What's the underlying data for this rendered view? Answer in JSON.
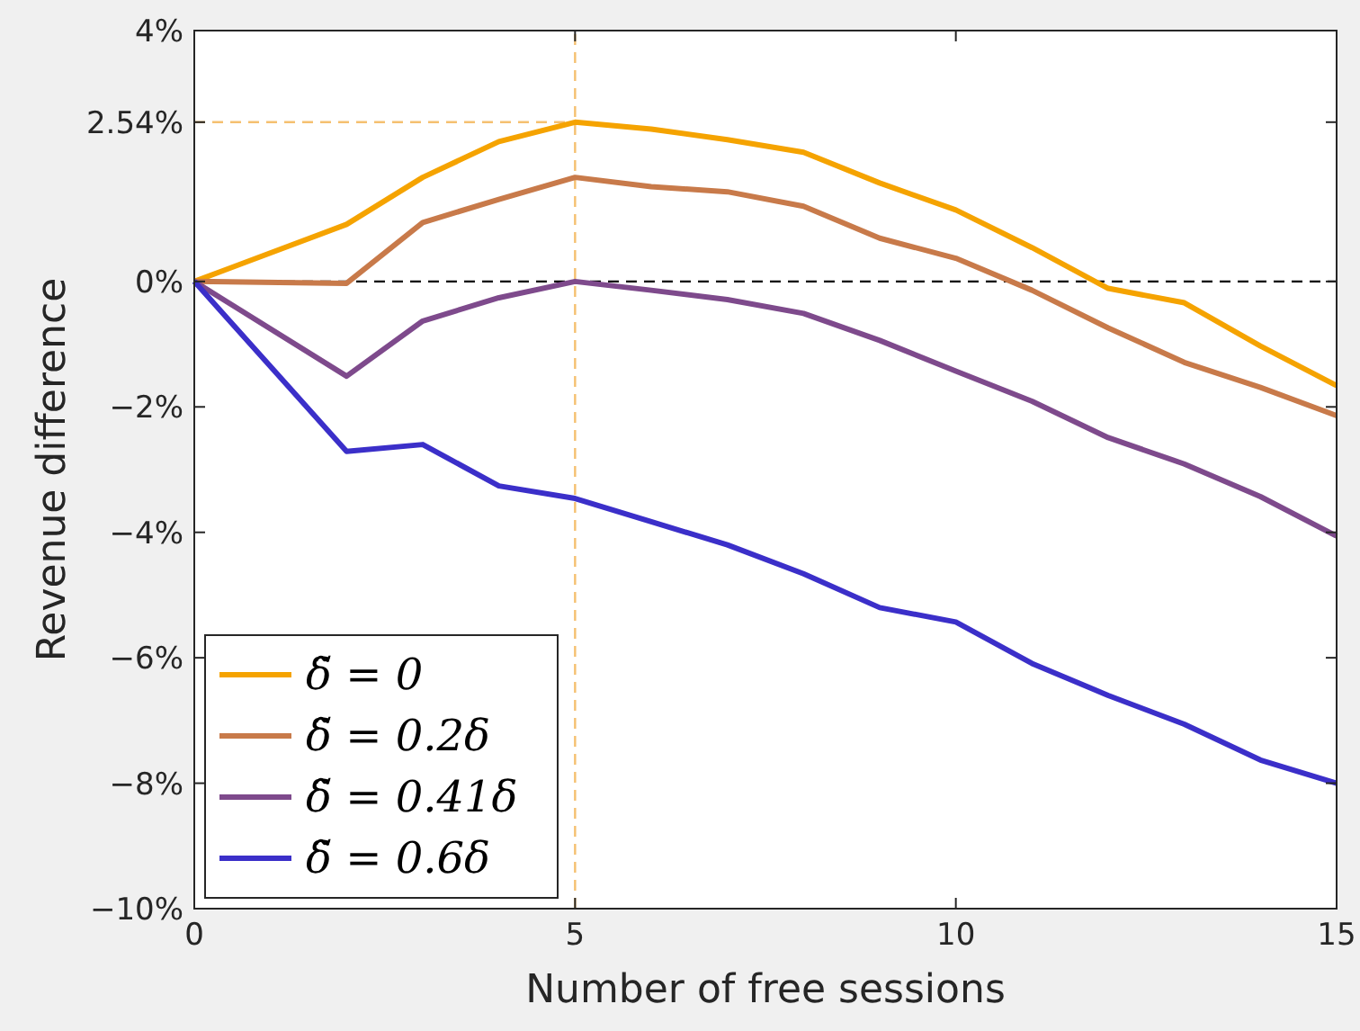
{
  "chart_data": {
    "type": "line",
    "xlabel": "Number of free sessions",
    "ylabel": "Revenue difference",
    "x": [
      0,
      2,
      3,
      4,
      5,
      6,
      7,
      8,
      9,
      10,
      11,
      12,
      13,
      14,
      15
    ],
    "series": [
      {
        "name": "δ̃ = 0",
        "color": "#f5a300",
        "values": [
          0,
          0.91,
          1.66,
          2.23,
          2.54,
          2.43,
          2.26,
          2.06,
          1.57,
          1.14,
          0.54,
          -0.11,
          -0.34,
          -1.03,
          -1.66
        ]
      },
      {
        "name": "δ̃ = 0.2δ",
        "color": "#c87a4a",
        "values": [
          0,
          -0.03,
          0.94,
          1.31,
          1.66,
          1.51,
          1.43,
          1.2,
          0.69,
          0.37,
          -0.14,
          -0.74,
          -1.29,
          -1.69,
          -2.14
        ]
      },
      {
        "name": "δ̃ = 0.41δ",
        "color": "#7e4a8c",
        "values": [
          0,
          -1.51,
          -0.63,
          -0.26,
          0,
          -0.14,
          -0.29,
          -0.51,
          -0.94,
          -1.43,
          -1.91,
          -2.49,
          -2.91,
          -3.43,
          -4.06
        ]
      },
      {
        "name": "δ̃ = 0.6δ",
        "color": "#3b2fc9",
        "values": [
          0,
          -2.71,
          -2.6,
          -3.26,
          -3.46,
          -3.83,
          -4.2,
          -4.66,
          -5.2,
          -5.43,
          -6.09,
          -6.6,
          -7.06,
          -7.63,
          -8.0
        ]
      }
    ],
    "xlim": [
      0,
      15
    ],
    "xticks": [
      0,
      5,
      10,
      15
    ],
    "ylim": [
      -10,
      4
    ],
    "yticks": [
      {
        "value": 4,
        "label": "4%"
      },
      {
        "value": 2.54,
        "label": "2.54%"
      },
      {
        "value": 0,
        "label": "0%"
      },
      {
        "value": -2,
        "label": "−2%"
      },
      {
        "value": -4,
        "label": "−4%"
      },
      {
        "value": -6,
        "label": "−6%"
      },
      {
        "value": -8,
        "label": "−8%"
      },
      {
        "value": -10,
        "label": "−10%"
      }
    ],
    "ref_lines": [
      {
        "axis": "y",
        "value": 0,
        "color": "#000000",
        "line_style": "dashed"
      },
      {
        "axis": "x",
        "value": 5,
        "color": "#f5c070",
        "line_style": "dashed"
      },
      {
        "axis": "y",
        "value": 2.54,
        "color": "#f5c070",
        "line_style": "dashed"
      }
    ],
    "legend": "bottom left",
    "grid": false,
    "line_style": "solid"
  }
}
